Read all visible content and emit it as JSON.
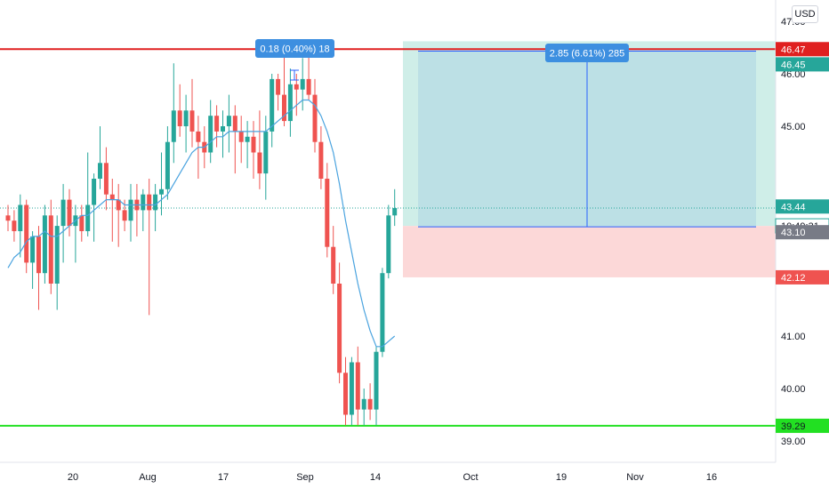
{
  "currency": "USD",
  "chart_data": {
    "type": "candlestick",
    "ylim": [
      38.6,
      47.4
    ],
    "y_ticks": [
      "39.00",
      "40.00",
      "41.00",
      "45.00",
      "46.00",
      "47.00"
    ],
    "x_ticks": [
      "20",
      "Aug",
      "17",
      "Sep",
      "14",
      "Oct",
      "19",
      "Nov",
      "16"
    ],
    "candles": [
      [
        43.3,
        43.5,
        43.0,
        43.2
      ],
      [
        43.2,
        43.4,
        42.8,
        43.0
      ],
      [
        43.0,
        43.7,
        42.5,
        43.5
      ],
      [
        43.5,
        43.6,
        42.2,
        42.4
      ],
      [
        42.4,
        43.0,
        41.9,
        42.9
      ],
      [
        42.9,
        43.1,
        41.5,
        42.2
      ],
      [
        42.2,
        43.5,
        42.0,
        43.3
      ],
      [
        43.3,
        43.6,
        41.8,
        42.0
      ],
      [
        42.0,
        43.3,
        41.5,
        43.1
      ],
      [
        43.1,
        43.9,
        42.4,
        43.6
      ],
      [
        43.6,
        43.8,
        42.9,
        43.1
      ],
      [
        43.1,
        43.5,
        42.4,
        43.3
      ],
      [
        43.3,
        43.5,
        42.8,
        43.0
      ],
      [
        43.0,
        44.5,
        42.9,
        43.5
      ],
      [
        43.5,
        44.1,
        42.8,
        44.0
      ],
      [
        44.0,
        45.0,
        43.8,
        44.3
      ],
      [
        44.3,
        44.6,
        43.4,
        43.7
      ],
      [
        43.7,
        44.0,
        42.8,
        43.6
      ],
      [
        43.6,
        43.9,
        42.7,
        43.4
      ],
      [
        43.4,
        43.6,
        43.0,
        43.2
      ],
      [
        43.2,
        43.9,
        42.8,
        43.6
      ],
      [
        43.6,
        43.9,
        42.9,
        43.4
      ],
      [
        43.4,
        43.8,
        43.0,
        43.7
      ],
      [
        43.7,
        44.0,
        41.4,
        43.4
      ],
      [
        43.4,
        43.9,
        43.0,
        43.7
      ],
      [
        43.7,
        44.5,
        43.3,
        43.8
      ],
      [
        43.8,
        45.0,
        43.6,
        44.7
      ],
      [
        44.7,
        46.2,
        44.3,
        45.3
      ],
      [
        45.3,
        45.8,
        44.8,
        45.0
      ],
      [
        45.0,
        45.6,
        44.5,
        45.3
      ],
      [
        45.3,
        45.9,
        44.6,
        44.9
      ],
      [
        44.9,
        45.2,
        44.0,
        44.7
      ],
      [
        44.7,
        45.0,
        44.2,
        44.5
      ],
      [
        44.5,
        45.5,
        44.3,
        45.2
      ],
      [
        45.2,
        45.4,
        44.6,
        44.9
      ],
      [
        44.9,
        45.3,
        44.4,
        45.0
      ],
      [
        45.0,
        45.6,
        44.5,
        45.2
      ],
      [
        45.2,
        45.4,
        44.1,
        44.9
      ],
      [
        44.9,
        45.2,
        44.3,
        44.7
      ],
      [
        44.7,
        45.1,
        44.2,
        44.8
      ],
      [
        44.8,
        45.1,
        44.0,
        44.5
      ],
      [
        44.5,
        45.3,
        43.8,
        44.1
      ],
      [
        44.1,
        45.2,
        43.6,
        44.9
      ],
      [
        44.9,
        46.0,
        44.6,
        45.9
      ],
      [
        45.9,
        46.0,
        45.3,
        45.6
      ],
      [
        45.6,
        46.5,
        45.0,
        45.1
      ],
      [
        45.1,
        46.1,
        44.8,
        45.8
      ],
      [
        45.8,
        46.0,
        45.2,
        45.7
      ],
      [
        45.7,
        46.3,
        45.3,
        45.9
      ],
      [
        45.9,
        46.5,
        45.5,
        45.6
      ],
      [
        45.6,
        45.9,
        44.5,
        44.7
      ],
      [
        44.7,
        45.0,
        43.8,
        44.0
      ],
      [
        44.0,
        44.3,
        42.5,
        42.7
      ],
      [
        42.7,
        43.1,
        41.8,
        42.0
      ],
      [
        42.0,
        42.4,
        40.1,
        40.3
      ],
      [
        40.3,
        40.6,
        39.3,
        39.5
      ],
      [
        39.5,
        40.6,
        39.3,
        40.5
      ],
      [
        40.5,
        40.8,
        39.3,
        39.6
      ],
      [
        39.6,
        40.0,
        39.3,
        39.8
      ],
      [
        39.8,
        40.1,
        39.4,
        39.6
      ],
      [
        39.6,
        40.8,
        39.3,
        40.7
      ],
      [
        40.7,
        42.3,
        40.6,
        42.2
      ],
      [
        42.2,
        43.5,
        42.1,
        43.3
      ],
      [
        43.3,
        43.8,
        43.1,
        43.44
      ]
    ],
    "ma": [
      42.3,
      42.5,
      42.6,
      42.8,
      42.9,
      42.9,
      43.0,
      42.9,
      42.9,
      43.0,
      43.1,
      43.2,
      43.3,
      43.3,
      43.4,
      43.5,
      43.6,
      43.6,
      43.6,
      43.5,
      43.5,
      43.5,
      43.5,
      43.5,
      43.5,
      43.6,
      43.7,
      43.9,
      44.1,
      44.3,
      44.5,
      44.6,
      44.6,
      44.7,
      44.8,
      44.8,
      44.9,
      44.9,
      44.9,
      44.9,
      44.9,
      44.9,
      44.9,
      45.0,
      45.1,
      45.2,
      45.3,
      45.4,
      45.5,
      45.5,
      45.4,
      45.2,
      44.9,
      44.5,
      43.9,
      43.2,
      42.6,
      42.0,
      41.5,
      41.1,
      40.8,
      40.8,
      40.9,
      41.0
    ],
    "levels": {
      "resistance": {
        "value": 46.47,
        "label": "46.47"
      },
      "support": {
        "value": 39.29,
        "label": "39.29"
      },
      "target": {
        "value": 46.45,
        "label": "46.45"
      },
      "last": {
        "value": 43.44,
        "label": "43.44"
      },
      "countdown": "10:49:31",
      "entry": {
        "value": 43.1,
        "label": "43.10"
      },
      "stop": {
        "value": 42.12,
        "label": "42.12"
      }
    },
    "measure_top": "0.18 (0.40%) 18",
    "measure_right": "2.85 (6.61%) 285"
  },
  "colors": {
    "up": "#26a69a",
    "down": "#ef5350",
    "ma": "#4aa3df",
    "resistance": "#e02020",
    "support": "#22e022",
    "profit_zone": "#cfeee8",
    "loss_zone": "#fcd8d8",
    "measure": "#2962ff",
    "badge_blue": "#3d8fe0",
    "entry_tag": "#787b86"
  }
}
